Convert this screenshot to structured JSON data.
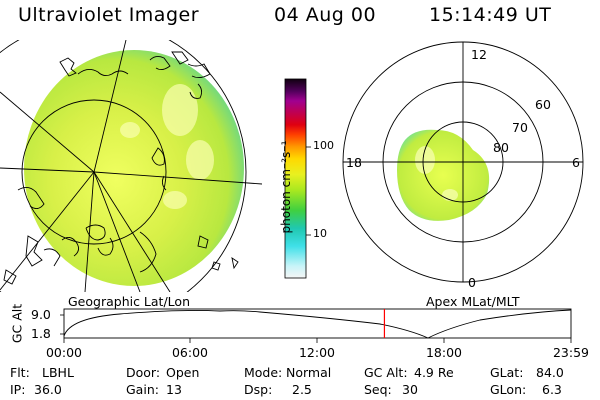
{
  "header": {
    "title": "Ultraviolet Imager",
    "date": "04 Aug 00",
    "time": "15:14:49 UT"
  },
  "colorbar": {
    "unit_label": "photon cm⁻²s⁻¹",
    "tick_labels": [
      "100",
      "10"
    ]
  },
  "left_panel": {
    "caption": "Geographic Lat/Lon"
  },
  "right_panel": {
    "caption": "Apex MLat/MLT",
    "mlt_labels": {
      "top": "12",
      "left": "18",
      "right": "6",
      "bottom": "0"
    },
    "lat_labels": [
      "60",
      "70",
      "80"
    ]
  },
  "altitude_plot": {
    "ylabel": "GC Alt",
    "y_ticks": [
      "9.0",
      "1.8"
    ],
    "x_ticks": [
      "00:00",
      "06:00",
      "12:00",
      "18:00",
      "23:59"
    ],
    "current_time_fraction": 0.632,
    "marker_color": "#ff0000"
  },
  "info": [
    [
      {
        "label": "Flt:",
        "value": "LBHL"
      },
      {
        "label": "Door:",
        "value": "Open"
      },
      {
        "label": "Mode:",
        "value": "Normal"
      },
      {
        "label": "GC Alt:",
        "value": "4.9 Re"
      },
      {
        "label": "GLat:",
        "value": "84.0"
      }
    ],
    [
      {
        "label": "IP:",
        "value": "36.0"
      },
      {
        "label": "Gain:",
        "value": "13"
      },
      {
        "label": "Dsp:",
        "value": "2.5"
      },
      {
        "label": "Seq:",
        "value": "30"
      },
      {
        "label": "GLon:",
        "value": "6.3"
      }
    ]
  ]
}
